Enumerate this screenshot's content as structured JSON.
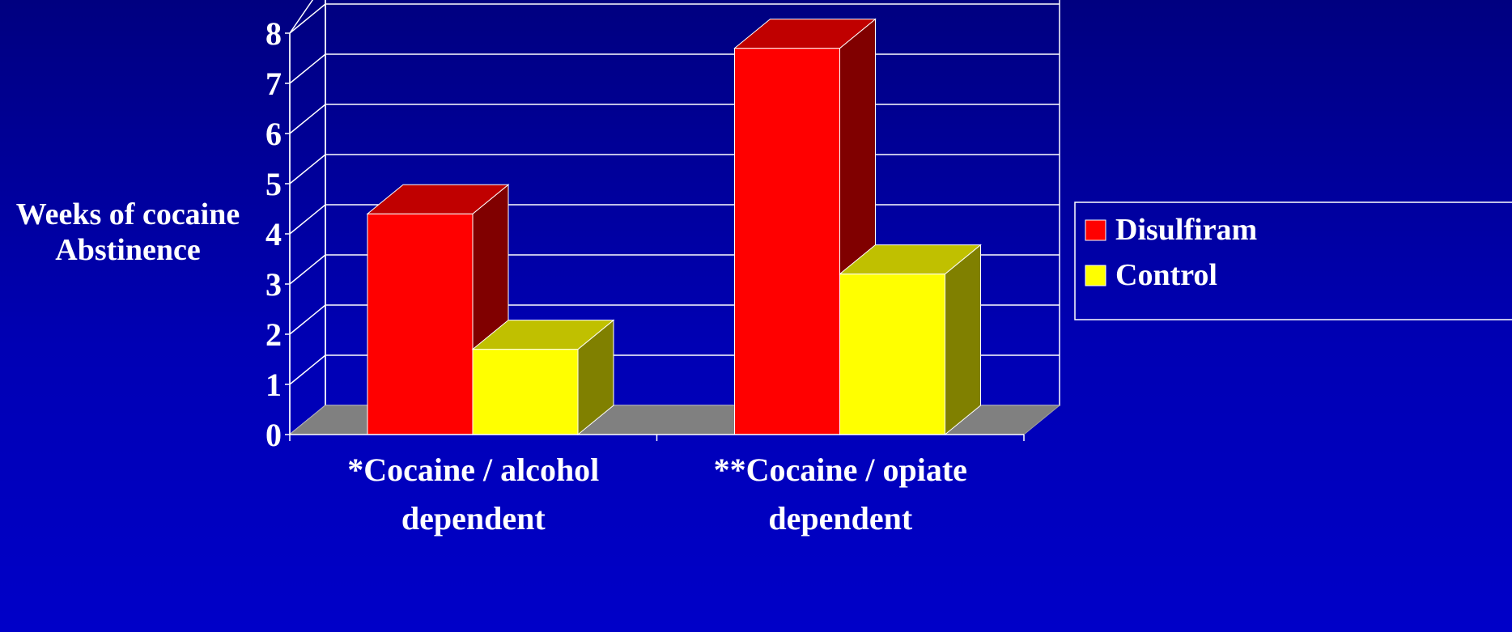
{
  "chart_data": {
    "type": "bar",
    "style": "3d-clustered",
    "title": "",
    "ylabel_lines": [
      "Weeks of cocaine",
      "Abstinence"
    ],
    "xlabel": "",
    "ylim": [
      0,
      8
    ],
    "yticks": [
      0,
      1,
      2,
      3,
      4,
      5,
      6,
      7,
      8
    ],
    "grid": true,
    "legend_position": "right",
    "categories": [
      {
        "lines": [
          "*Cocaine / alcohol",
          "dependent"
        ]
      },
      {
        "lines": [
          "**Cocaine / opiate",
          "dependent"
        ]
      }
    ],
    "series": [
      {
        "name": "Disulfiram",
        "values": [
          4.4,
          7.7
        ],
        "color": "#ff0000",
        "top_color": "#c00000",
        "side_color": "#800000"
      },
      {
        "name": "Control",
        "values": [
          1.7,
          3.2
        ],
        "color": "#ffff00",
        "top_color": "#c0c000",
        "side_color": "#808000"
      }
    ],
    "colors": {
      "background": "#0000b4",
      "floor": "#808080",
      "gridlines": "#ffffff"
    }
  }
}
